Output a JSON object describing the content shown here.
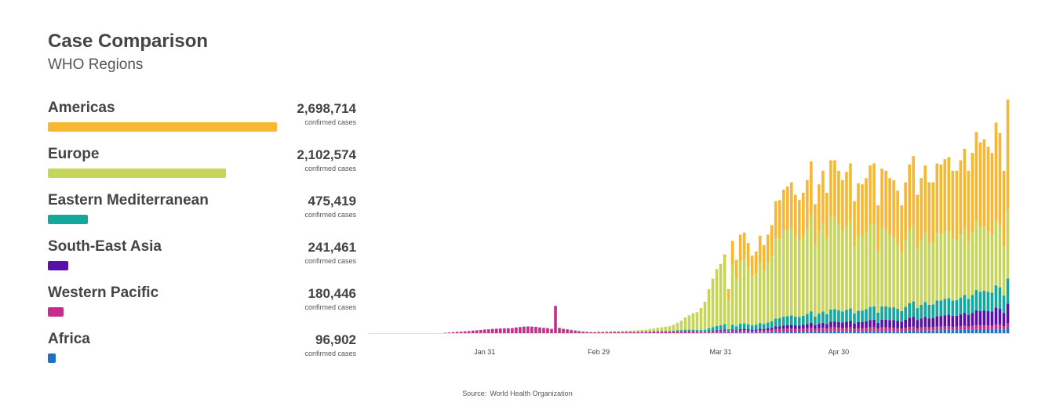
{
  "header": {
    "title": "Case Comparison",
    "subtitle": "WHO Regions"
  },
  "regions": [
    {
      "name": "Americas",
      "count": "2,698,714",
      "unit": "confirmed cases",
      "value": 2698714,
      "color": "#f7b731"
    },
    {
      "name": "Europe",
      "count": "2,102,574",
      "unit": "confirmed cases",
      "value": 2102574,
      "color": "#c5d55a"
    },
    {
      "name": "Eastern Mediterranean",
      "count": "475,419",
      "unit": "confirmed cases",
      "value": 475419,
      "color": "#13a89e"
    },
    {
      "name": "South-East Asia",
      "count": "241,461",
      "unit": "confirmed cases",
      "value": 241461,
      "color": "#5a0fa8"
    },
    {
      "name": "Western Pacific",
      "count": "180,446",
      "unit": "confirmed cases",
      "value": 180446,
      "color": "#c62d8a"
    },
    {
      "name": "Africa",
      "count": "96,902",
      "unit": "confirmed cases",
      "value": 96902,
      "color": "#1f6fc5"
    }
  ],
  "source": {
    "label": "Source:",
    "name": "World Health Organization"
  },
  "chart_data": {
    "type": "bar",
    "stacked": true,
    "x_start": "2020-01-11",
    "x_end": "2020-05-21",
    "x_tick_labels": [
      {
        "label": "Jan 31",
        "date": "2020-01-31"
      },
      {
        "label": "Feb 29",
        "date": "2020-02-29"
      },
      {
        "label": "Mar 31",
        "date": "2020-03-31"
      },
      {
        "label": "Apr 30",
        "date": "2020-04-30"
      }
    ],
    "ylim": [
      0,
      110000
    ],
    "grid": false,
    "legend": "left",
    "series_order_bottom_to_top": [
      "Africa",
      "Western Pacific",
      "South-East Asia",
      "Eastern Mediterranean",
      "Europe",
      "Americas"
    ],
    "series_colors": [
      "#1f6fc5",
      "#c62d8a",
      "#5a0fa8",
      "#13a89e",
      "#c5d55a",
      "#f7b731"
    ],
    "daily_totals": [
      0,
      0,
      0,
      0,
      0,
      0,
      0,
      0,
      0,
      0,
      200,
      300,
      450,
      600,
      700,
      850,
      950,
      1200,
      1350,
      1500,
      1700,
      1800,
      2000,
      2100,
      2200,
      2300,
      2300,
      2400,
      2700,
      2900,
      3100,
      3200,
      3100,
      3000,
      2700,
      2500,
      2400,
      2000,
      13000,
      2500,
      2200,
      2000,
      1700,
      1400,
      1100,
      850,
      700,
      600,
      600,
      700,
      750,
      800,
      850,
      900,
      950,
      1000,
      1100,
      1150,
      1200,
      1350,
      1500,
      1600,
      2000,
      2200,
      2600,
      2800,
      3100,
      3300,
      4000,
      5000,
      6000,
      7500,
      8500,
      9500,
      10000,
      12000,
      15000,
      21000,
      26000,
      30500,
      33000,
      37500,
      21000,
      44000,
      35000,
      47000,
      48000,
      43000,
      37000,
      39000,
      46500,
      42000,
      47000,
      51500,
      63000,
      63500,
      68500,
      70000,
      72000,
      66000,
      63500,
      67000,
      73000,
      82000,
      61500,
      71000,
      77500,
      67000,
      82500,
      82500,
      77500,
      73000,
      77000,
      81000,
      63000,
      71500,
      71000,
      74000,
      80000,
      81000,
      61000,
      78500,
      77500,
      74000,
      73000,
      68000,
      61000,
      72000,
      80500,
      84500,
      66000,
      74000,
      80000,
      72000,
      72000,
      81000,
      80500,
      83000,
      84000,
      77500,
      77500,
      82500,
      88000,
      77500,
      86000,
      96000,
      91000,
      92500,
      89000,
      86000,
      100500,
      95500,
      77500,
      111500
    ],
    "daily_breakdown": {
      "Africa": "rises from 0 to about 2,500 per day by late May",
      "Western Pacific": "about 100 to 3,200 per day; peaks around early February with one spike near 13,000",
      "South-East Asia": "rises from 0 to about 9,000 per day by late May",
      "Eastern Mediterranean": "rises from 0 to about 12,000 per day by late May",
      "Europe": "peaks around 35,000 per day in early April, then declines",
      "Americas": "the largest share from April, reaching about 50,000 to 60,000 per day"
    }
  }
}
